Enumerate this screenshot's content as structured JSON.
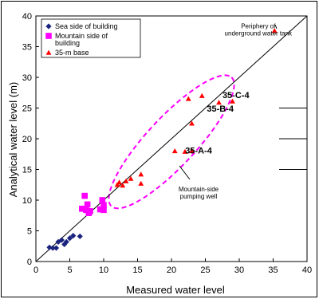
{
  "chart_data": {
    "type": "scatter",
    "xlabel": "Measured water level",
    "ylabel": "Analytical water level (m)",
    "xlim": [
      0,
      40
    ],
    "ylim": [
      0,
      40
    ],
    "xticks": [
      0,
      5,
      10,
      15,
      20,
      25,
      30,
      35,
      40
    ],
    "yticks": [
      0,
      5,
      10,
      15,
      20,
      25,
      30,
      35,
      40
    ],
    "grid": false,
    "legend_position": "top-left",
    "reference_line": "y = x",
    "series": [
      {
        "name": "Sea side of building",
        "marker": "diamond",
        "color": "#1a237e",
        "points": [
          [
            2.0,
            2.3
          ],
          [
            2.5,
            2.2
          ],
          [
            3.0,
            2.2
          ],
          [
            3.3,
            3.2
          ],
          [
            3.8,
            3.5
          ],
          [
            4.2,
            2.8
          ],
          [
            4.5,
            3.2
          ],
          [
            5.0,
            3.8
          ],
          [
            5.5,
            4.2
          ],
          [
            6.5,
            4.1
          ]
        ]
      },
      {
        "name": "Mountain side of building",
        "name_lines": [
          "Mountain side of",
          "building"
        ],
        "marker": "square",
        "color": "#ff00ff",
        "points": [
          [
            6.8,
            8.6
          ],
          [
            7.2,
            10.7
          ],
          [
            7.4,
            8.4
          ],
          [
            7.6,
            9.3
          ],
          [
            7.8,
            7.9
          ],
          [
            8.0,
            8.2
          ],
          [
            9.5,
            8.5
          ],
          [
            9.8,
            10.0
          ],
          [
            10.0,
            9.2
          ],
          [
            10.0,
            8.4
          ]
        ]
      },
      {
        "name": "35-m base",
        "marker": "triangle",
        "color": "#ff0000",
        "points": [
          [
            12.0,
            12.5
          ],
          [
            12.3,
            12.9
          ],
          [
            12.8,
            12.4
          ],
          [
            13.3,
            13.1
          ],
          [
            14.0,
            13.5
          ],
          [
            15.5,
            14.2
          ],
          [
            15.5,
            12.7
          ],
          [
            20.5,
            18.0
          ],
          [
            22.0,
            17.9
          ],
          [
            23.0,
            18.0
          ],
          [
            23.0,
            22.5
          ],
          [
            22.5,
            26.5
          ],
          [
            24.5,
            27.0
          ],
          [
            27.0,
            25.9
          ],
          [
            29.0,
            26.1
          ],
          [
            35.2,
            37.6
          ]
        ]
      }
    ],
    "annotations": [
      {
        "text_lines": [
          "Periphery of",
          "underground water tank"
        ],
        "x": 32.8,
        "y": 38.0,
        "style": "small"
      },
      {
        "text_lines": [
          "35-C-4"
        ],
        "x": 29.5,
        "y": 26.6,
        "style": "bold"
      },
      {
        "text_lines": [
          "35-B-4"
        ],
        "x": 27.2,
        "y": 24.4,
        "style": "bold"
      },
      {
        "text_lines": [
          "35-A-4"
        ],
        "x": 24.0,
        "y": 17.6,
        "style": "bold"
      },
      {
        "text_lines": [
          "Mountain-side",
          "pumping well"
        ],
        "x": 24.0,
        "y": 11.4,
        "style": "small"
      }
    ],
    "callout_ellipse": {
      "cx": 20.0,
      "cy": 19.5,
      "rx": 13.0,
      "ry": 3.6,
      "angle_deg": -47,
      "color": "#ff00ff",
      "style": "dashed"
    }
  }
}
